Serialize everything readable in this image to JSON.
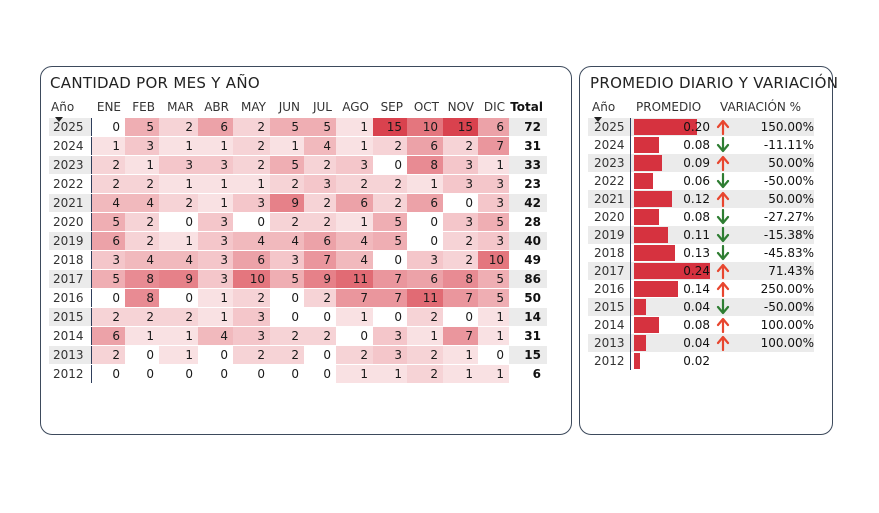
{
  "heatmap": {
    "title": "CANTIDAD POR MES Y AÑO",
    "year_header": "Año",
    "total_header": "Total",
    "months": [
      "ENE",
      "FEB",
      "MAR",
      "ABR",
      "MAY",
      "JUN",
      "JUL",
      "AGO",
      "SEP",
      "OCT",
      "NOV",
      "DIC"
    ],
    "max_value": 15,
    "base_color": "#d6323f",
    "rows": [
      {
        "year": "2025",
        "values": [
          0,
          5,
          2,
          6,
          2,
          5,
          5,
          1,
          15,
          10,
          15,
          6
        ],
        "total": "72"
      },
      {
        "year": "2024",
        "values": [
          1,
          3,
          1,
          1,
          2,
          1,
          4,
          1,
          2,
          6,
          2,
          7
        ],
        "total": "31"
      },
      {
        "year": "2023",
        "values": [
          2,
          1,
          3,
          3,
          2,
          5,
          2,
          3,
          0,
          8,
          3,
          1
        ],
        "total": "33"
      },
      {
        "year": "2022",
        "values": [
          2,
          2,
          1,
          1,
          1,
          2,
          3,
          2,
          2,
          1,
          3,
          3
        ],
        "total": "23"
      },
      {
        "year": "2021",
        "values": [
          4,
          4,
          2,
          1,
          3,
          9,
          2,
          6,
          2,
          6,
          0,
          3
        ],
        "total": "42"
      },
      {
        "year": "2020",
        "values": [
          5,
          2,
          0,
          3,
          0,
          2,
          2,
          1,
          5,
          0,
          3,
          5
        ],
        "total": "28"
      },
      {
        "year": "2019",
        "values": [
          6,
          2,
          1,
          3,
          4,
          4,
          6,
          4,
          5,
          0,
          2,
          3
        ],
        "total": "40"
      },
      {
        "year": "2018",
        "values": [
          3,
          4,
          4,
          3,
          6,
          3,
          7,
          4,
          0,
          3,
          2,
          10
        ],
        "total": "49"
      },
      {
        "year": "2017",
        "values": [
          5,
          8,
          9,
          3,
          10,
          5,
          9,
          11,
          7,
          6,
          8,
          5
        ],
        "total": "86"
      },
      {
        "year": "2016",
        "values": [
          0,
          8,
          0,
          1,
          2,
          0,
          2,
          7,
          7,
          11,
          7,
          5
        ],
        "total": "50"
      },
      {
        "year": "2015",
        "values": [
          2,
          2,
          2,
          1,
          3,
          0,
          0,
          1,
          0,
          2,
          0,
          1
        ],
        "total": "14"
      },
      {
        "year": "2014",
        "values": [
          6,
          1,
          1,
          4,
          3,
          2,
          2,
          0,
          3,
          1,
          7,
          1
        ],
        "total": "31"
      },
      {
        "year": "2013",
        "values": [
          2,
          0,
          1,
          0,
          2,
          2,
          0,
          2,
          3,
          2,
          1,
          0
        ],
        "total": "15"
      },
      {
        "year": "2012",
        "values": [
          0,
          0,
          0,
          0,
          0,
          0,
          0,
          1,
          1,
          2,
          1,
          1
        ],
        "total": "6"
      }
    ]
  },
  "average": {
    "title": "PROMEDIO DIARIO Y VARIACIÓN",
    "year_header": "Año",
    "avg_header": "PROMEDIO",
    "var_header": "VARIACIÓN %",
    "max_avg": 0.24,
    "up_color": "#e8462f",
    "down_color": "#2e7d32",
    "rows": [
      {
        "year": "2025",
        "avg": 0.2,
        "avg_label": "0.20",
        "dir": "up",
        "icon": "arrow-up-icon",
        "variation": "150.00%"
      },
      {
        "year": "2024",
        "avg": 0.08,
        "avg_label": "0.08",
        "dir": "down",
        "icon": "arrow-down-icon",
        "variation": "-11.11%"
      },
      {
        "year": "2023",
        "avg": 0.09,
        "avg_label": "0.09",
        "dir": "up",
        "icon": "arrow-up-icon",
        "variation": "50.00%"
      },
      {
        "year": "2022",
        "avg": 0.06,
        "avg_label": "0.06",
        "dir": "down",
        "icon": "arrow-down-icon",
        "variation": "-50.00%"
      },
      {
        "year": "2021",
        "avg": 0.12,
        "avg_label": "0.12",
        "dir": "up",
        "icon": "arrow-up-icon",
        "variation": "50.00%"
      },
      {
        "year": "2020",
        "avg": 0.08,
        "avg_label": "0.08",
        "dir": "down",
        "icon": "arrow-down-icon",
        "variation": "-27.27%"
      },
      {
        "year": "2019",
        "avg": 0.11,
        "avg_label": "0.11",
        "dir": "down",
        "icon": "arrow-down-icon",
        "variation": "-15.38%"
      },
      {
        "year": "2018",
        "avg": 0.13,
        "avg_label": "0.13",
        "dir": "down",
        "icon": "arrow-down-icon",
        "variation": "-45.83%"
      },
      {
        "year": "2017",
        "avg": 0.24,
        "avg_label": "0.24",
        "dir": "up",
        "icon": "arrow-up-icon",
        "variation": "71.43%"
      },
      {
        "year": "2016",
        "avg": 0.14,
        "avg_label": "0.14",
        "dir": "up",
        "icon": "arrow-up-icon",
        "variation": "250.00%"
      },
      {
        "year": "2015",
        "avg": 0.04,
        "avg_label": "0.04",
        "dir": "down",
        "icon": "arrow-down-icon",
        "variation": "-50.00%"
      },
      {
        "year": "2014",
        "avg": 0.08,
        "avg_label": "0.08",
        "dir": "up",
        "icon": "arrow-up-icon",
        "variation": "100.00%"
      },
      {
        "year": "2013",
        "avg": 0.04,
        "avg_label": "0.04",
        "dir": "up",
        "icon": "arrow-up-icon",
        "variation": "100.00%"
      },
      {
        "year": "2012",
        "avg": 0.02,
        "avg_label": "0.02",
        "dir": "none",
        "icon": "",
        "variation": ""
      }
    ]
  }
}
